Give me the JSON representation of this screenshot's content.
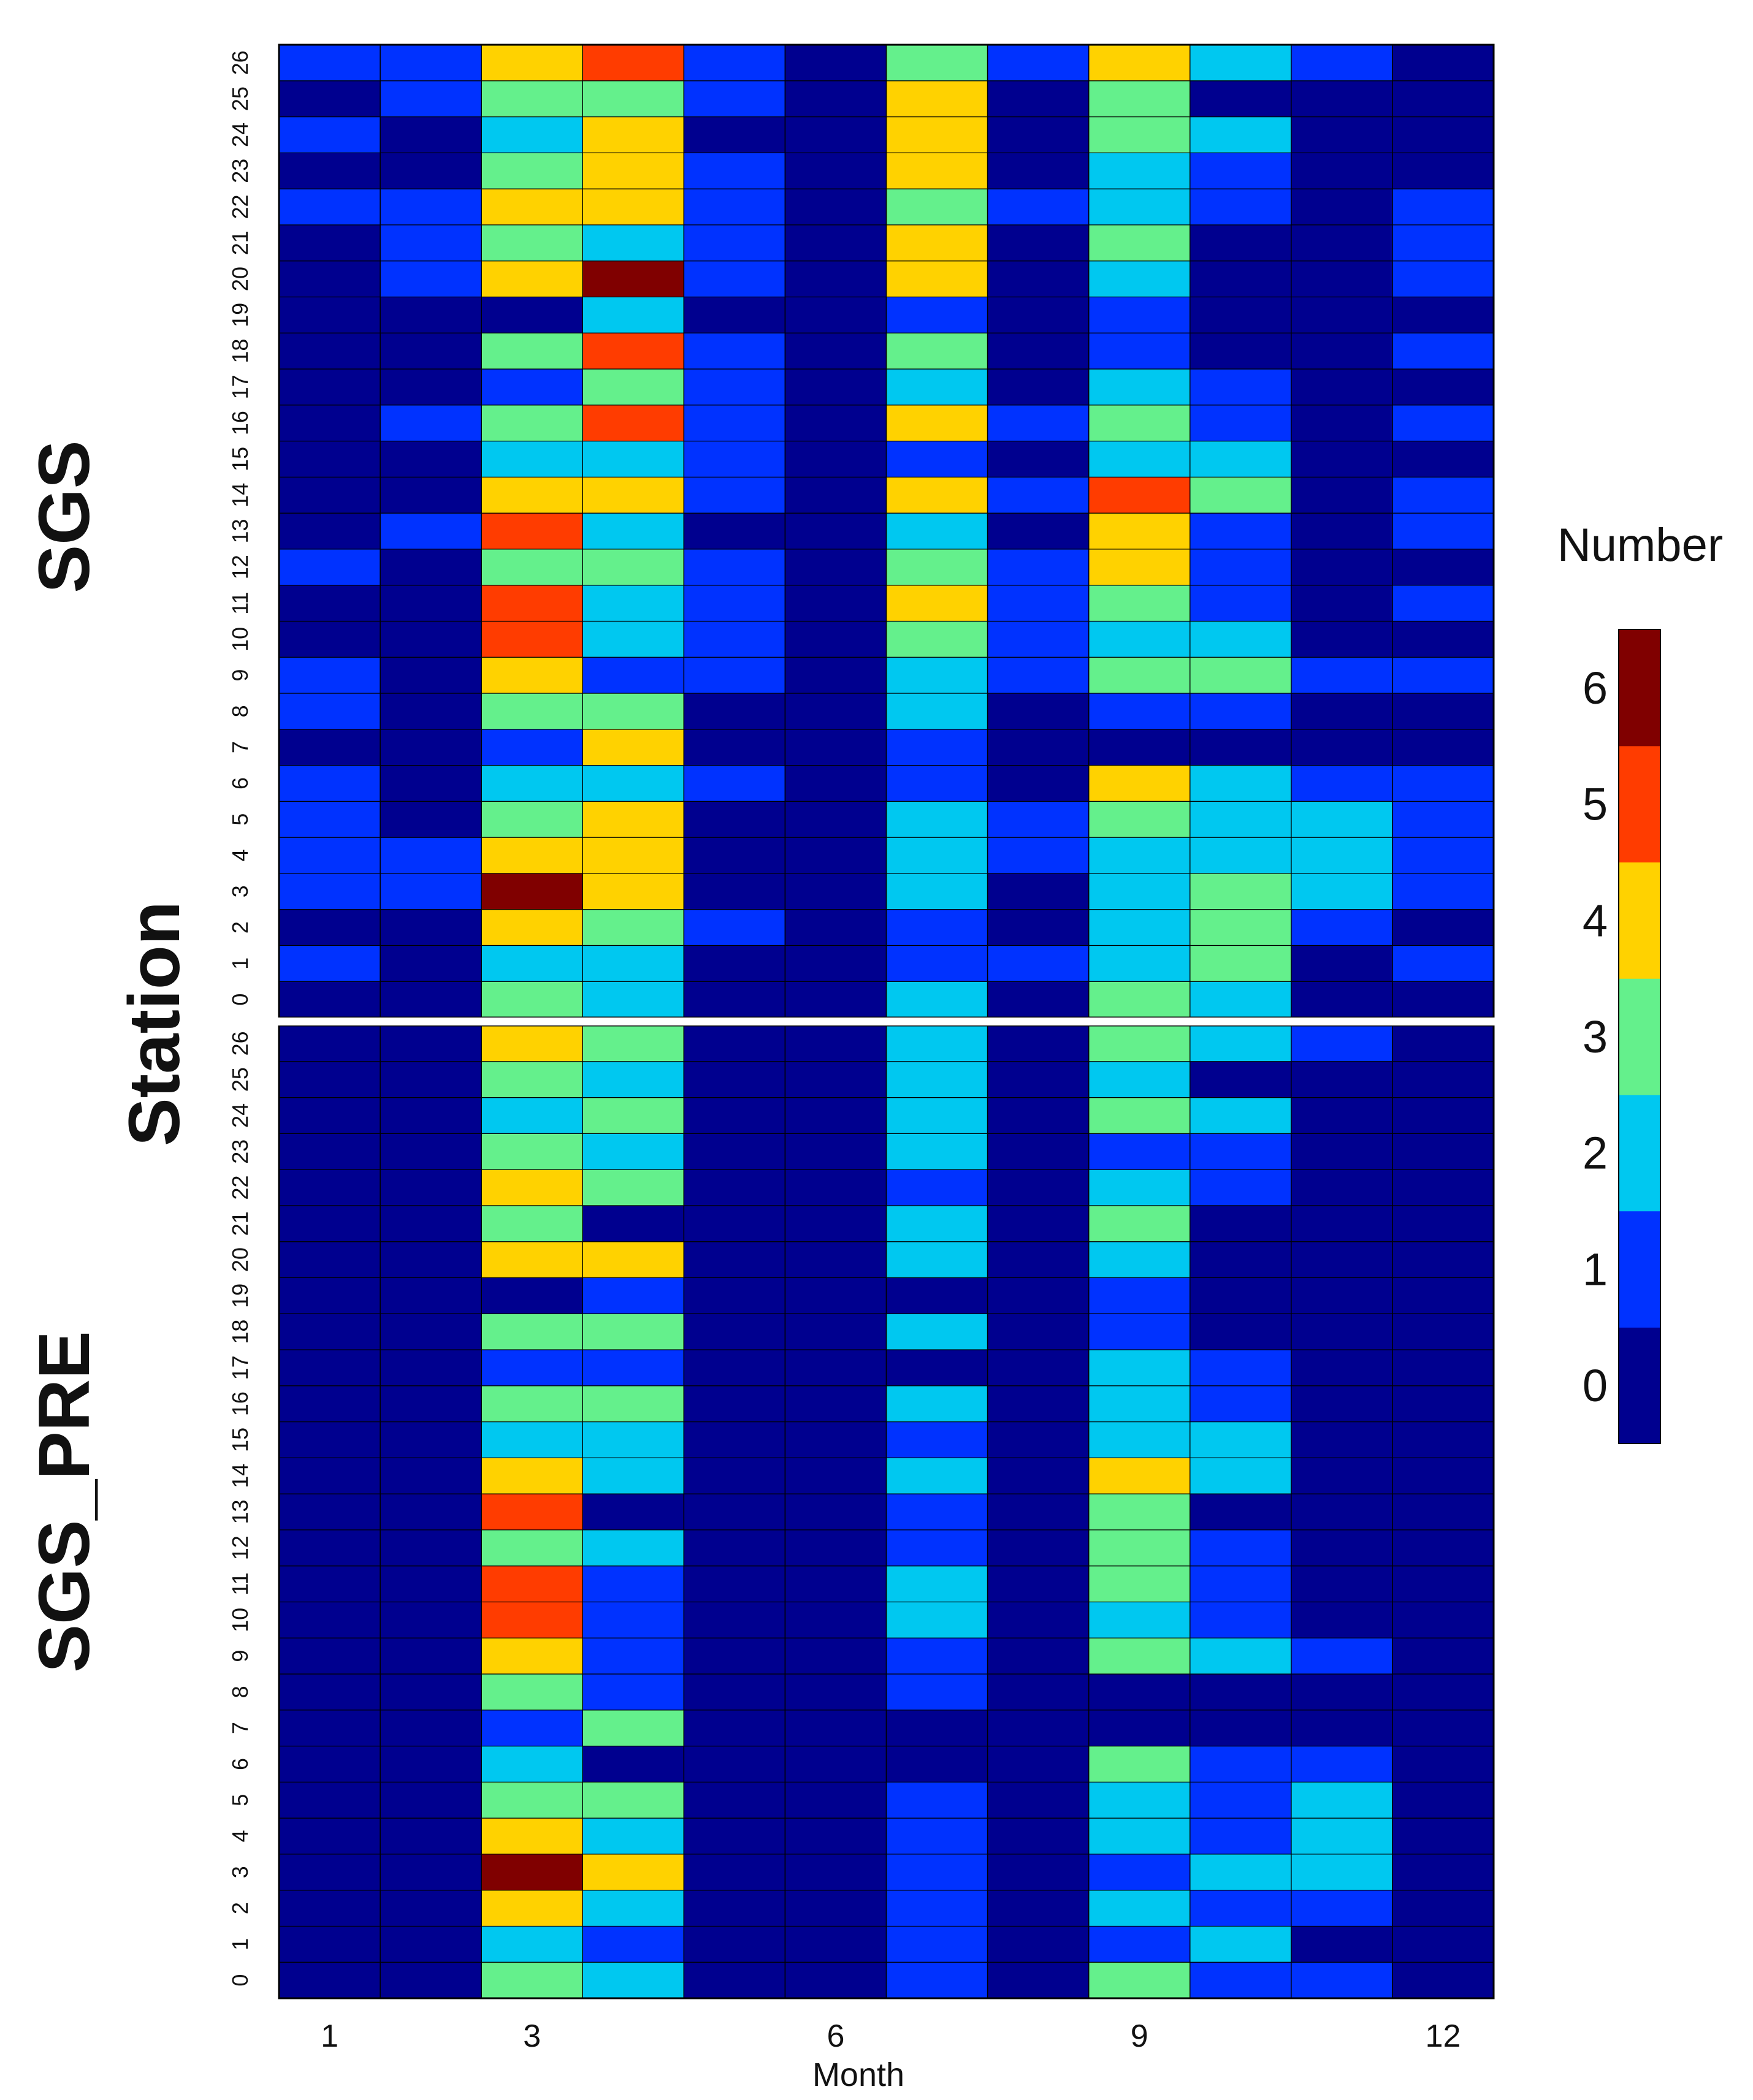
{
  "chart_data": {
    "type": "heatmap",
    "xlabel": "Month",
    "ylabel": "Station",
    "x_ticks": [
      "1",
      "3",
      "6",
      "9",
      "12"
    ],
    "months": [
      1,
      2,
      3,
      4,
      5,
      6,
      7,
      8,
      9,
      10,
      11,
      12
    ],
    "stations": [
      0,
      1,
      2,
      3,
      4,
      5,
      6,
      7,
      8,
      9,
      10,
      11,
      12,
      13,
      14,
      15,
      16,
      17,
      18,
      19,
      20,
      21,
      22,
      23,
      24,
      25,
      26
    ],
    "colorbar": {
      "title": "Number",
      "range": [
        0,
        6
      ],
      "ticks": [
        "0",
        "1",
        "2",
        "3",
        "4",
        "5",
        "6"
      ],
      "colors": [
        "#00008F",
        "#0032FF",
        "#00C8F0",
        "#64F08C",
        "#FFD200",
        "#FF3C00",
        "#800000"
      ]
    },
    "panels": [
      {
        "label": "SGS",
        "values": [
          [
            0,
            0,
            3,
            2,
            0,
            0,
            2,
            0,
            3,
            2,
            0,
            0
          ],
          [
            1,
            0,
            2,
            2,
            0,
            0,
            1,
            1,
            2,
            3,
            0,
            1
          ],
          [
            0,
            0,
            4,
            3,
            1,
            0,
            1,
            0,
            2,
            3,
            1,
            0
          ],
          [
            1,
            1,
            6,
            4,
            0,
            0,
            2,
            0,
            2,
            3,
            2,
            1
          ],
          [
            1,
            1,
            4,
            4,
            0,
            0,
            2,
            1,
            2,
            2,
            2,
            1
          ],
          [
            1,
            0,
            3,
            4,
            0,
            0,
            2,
            1,
            3,
            2,
            2,
            1
          ],
          [
            1,
            0,
            2,
            2,
            1,
            0,
            1,
            0,
            4,
            2,
            1,
            1
          ],
          [
            0,
            0,
            1,
            4,
            0,
            0,
            1,
            0,
            0,
            0,
            0,
            0
          ],
          [
            1,
            0,
            3,
            3,
            0,
            0,
            2,
            0,
            1,
            1,
            0,
            0
          ],
          [
            1,
            0,
            4,
            1,
            1,
            0,
            2,
            1,
            3,
            3,
            1,
            1
          ],
          [
            0,
            0,
            5,
            2,
            1,
            0,
            3,
            1,
            2,
            2,
            0,
            0
          ],
          [
            0,
            0,
            5,
            2,
            1,
            0,
            4,
            1,
            3,
            1,
            0,
            1
          ],
          [
            1,
            0,
            3,
            3,
            1,
            0,
            3,
            1,
            4,
            1,
            0,
            0
          ],
          [
            0,
            1,
            5,
            2,
            0,
            0,
            2,
            0,
            4,
            1,
            0,
            1
          ],
          [
            0,
            0,
            4,
            4,
            1,
            0,
            4,
            1,
            5,
            3,
            0,
            1
          ],
          [
            0,
            0,
            2,
            2,
            1,
            0,
            1,
            0,
            2,
            2,
            0,
            0
          ],
          [
            0,
            1,
            3,
            5,
            1,
            0,
            4,
            1,
            3,
            1,
            0,
            1
          ],
          [
            0,
            0,
            1,
            3,
            1,
            0,
            2,
            0,
            2,
            1,
            0,
            0
          ],
          [
            0,
            0,
            3,
            5,
            1,
            0,
            3,
            0,
            1,
            0,
            0,
            1
          ],
          [
            0,
            0,
            0,
            2,
            0,
            0,
            1,
            0,
            1,
            0,
            0,
            0
          ],
          [
            0,
            1,
            4,
            6,
            1,
            0,
            4,
            0,
            2,
            0,
            0,
            1
          ],
          [
            0,
            1,
            3,
            2,
            1,
            0,
            4,
            0,
            3,
            0,
            0,
            1
          ],
          [
            1,
            1,
            4,
            4,
            1,
            0,
            3,
            1,
            2,
            1,
            0,
            1
          ],
          [
            0,
            0,
            3,
            4,
            1,
            0,
            4,
            0,
            2,
            1,
            0,
            0
          ],
          [
            1,
            0,
            2,
            4,
            0,
            0,
            4,
            0,
            3,
            2,
            0,
            0
          ],
          [
            0,
            1,
            3,
            3,
            1,
            0,
            4,
            0,
            3,
            0,
            0,
            0
          ],
          [
            1,
            1,
            4,
            5,
            1,
            0,
            3,
            1,
            4,
            2,
            1,
            0
          ]
        ]
      },
      {
        "label": "SGS_PRE",
        "values": [
          [
            0,
            0,
            3,
            2,
            0,
            0,
            1,
            0,
            3,
            1,
            1,
            0
          ],
          [
            0,
            0,
            2,
            1,
            0,
            0,
            1,
            0,
            1,
            2,
            0,
            0
          ],
          [
            0,
            0,
            4,
            2,
            0,
            0,
            1,
            0,
            2,
            1,
            1,
            0
          ],
          [
            0,
            0,
            6,
            4,
            0,
            0,
            1,
            0,
            1,
            2,
            2,
            0
          ],
          [
            0,
            0,
            4,
            2,
            0,
            0,
            1,
            0,
            2,
            1,
            2,
            0
          ],
          [
            0,
            0,
            3,
            3,
            0,
            0,
            1,
            0,
            2,
            1,
            2,
            0
          ],
          [
            0,
            0,
            2,
            0,
            0,
            0,
            0,
            0,
            3,
            1,
            1,
            0
          ],
          [
            0,
            0,
            1,
            3,
            0,
            0,
            0,
            0,
            0,
            0,
            0,
            0
          ],
          [
            0,
            0,
            3,
            1,
            0,
            0,
            1,
            0,
            0,
            0,
            0,
            0
          ],
          [
            0,
            0,
            4,
            1,
            0,
            0,
            1,
            0,
            3,
            2,
            1,
            0
          ],
          [
            0,
            0,
            5,
            1,
            0,
            0,
            2,
            0,
            2,
            1,
            0,
            0
          ],
          [
            0,
            0,
            5,
            1,
            0,
            0,
            2,
            0,
            3,
            1,
            0,
            0
          ],
          [
            0,
            0,
            3,
            2,
            0,
            0,
            1,
            0,
            3,
            1,
            0,
            0
          ],
          [
            0,
            0,
            5,
            0,
            0,
            0,
            1,
            0,
            3,
            0,
            0,
            0
          ],
          [
            0,
            0,
            4,
            2,
            0,
            0,
            2,
            0,
            4,
            2,
            0,
            0
          ],
          [
            0,
            0,
            2,
            2,
            0,
            0,
            1,
            0,
            2,
            2,
            0,
            0
          ],
          [
            0,
            0,
            3,
            3,
            0,
            0,
            2,
            0,
            2,
            1,
            0,
            0
          ],
          [
            0,
            0,
            1,
            1,
            0,
            0,
            0,
            0,
            2,
            1,
            0,
            0
          ],
          [
            0,
            0,
            3,
            3,
            0,
            0,
            2,
            0,
            1,
            0,
            0,
            0
          ],
          [
            0,
            0,
            0,
            1,
            0,
            0,
            0,
            0,
            1,
            0,
            0,
            0
          ],
          [
            0,
            0,
            4,
            4,
            0,
            0,
            2,
            0,
            2,
            0,
            0,
            0
          ],
          [
            0,
            0,
            3,
            0,
            0,
            0,
            2,
            0,
            3,
            0,
            0,
            0
          ],
          [
            0,
            0,
            4,
            3,
            0,
            0,
            1,
            0,
            2,
            1,
            0,
            0
          ],
          [
            0,
            0,
            3,
            2,
            0,
            0,
            2,
            0,
            1,
            1,
            0,
            0
          ],
          [
            0,
            0,
            2,
            3,
            0,
            0,
            2,
            0,
            3,
            2,
            0,
            0
          ],
          [
            0,
            0,
            3,
            2,
            0,
            0,
            2,
            0,
            2,
            0,
            0,
            0
          ],
          [
            0,
            0,
            4,
            3,
            0,
            0,
            2,
            0,
            3,
            2,
            1,
            0
          ]
        ]
      }
    ]
  }
}
